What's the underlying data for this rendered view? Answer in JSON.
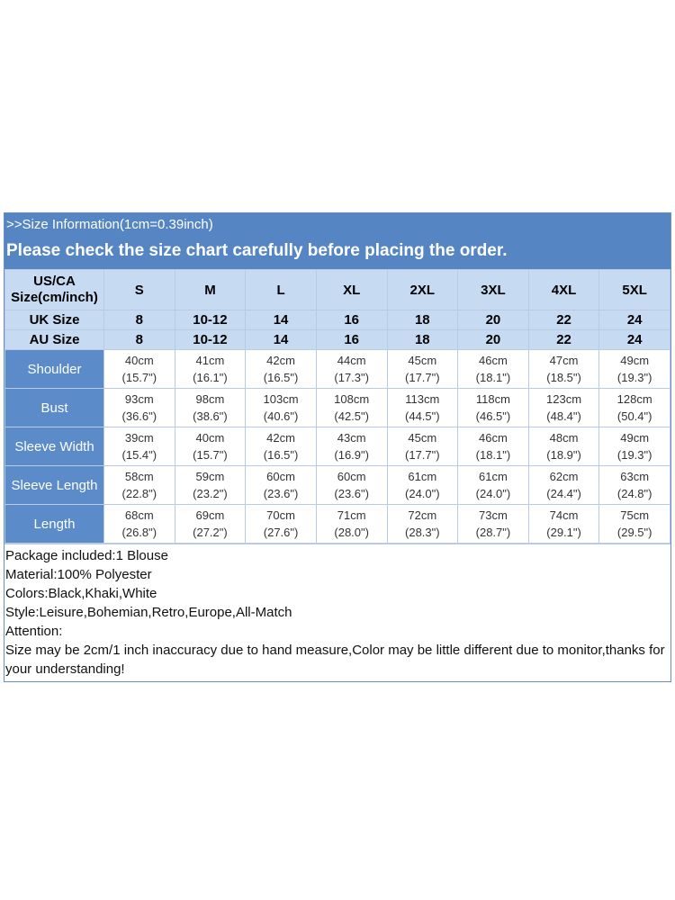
{
  "header": {
    "info": ">>Size Information(1cm=0.39inch)",
    "notice": "Please check the size chart carefully before placing the order."
  },
  "size_rows": [
    {
      "label": "US/CA Size(cm/inch)",
      "values": [
        "S",
        "M",
        "L",
        "XL",
        "2XL",
        "3XL",
        "4XL",
        "5XL"
      ]
    },
    {
      "label": "UK Size",
      "values": [
        "8",
        "10-12",
        "14",
        "16",
        "18",
        "20",
        "22",
        "24"
      ]
    },
    {
      "label": "AU Size",
      "values": [
        "8",
        "10-12",
        "14",
        "16",
        "18",
        "20",
        "22",
        "24"
      ]
    }
  ],
  "measurements": [
    {
      "label": "Shoulder",
      "cm": [
        "40cm",
        "41cm",
        "42cm",
        "44cm",
        "45cm",
        "46cm",
        "47cm",
        "49cm"
      ],
      "inch": [
        "(15.7\")",
        "(16.1\")",
        "(16.5\")",
        "(17.3\")",
        "(17.7\")",
        "(18.1\")",
        "(18.5\")",
        "(19.3\")"
      ]
    },
    {
      "label": "Bust",
      "cm": [
        "93cm",
        "98cm",
        "103cm",
        "108cm",
        "113cm",
        "118cm",
        "123cm",
        "128cm"
      ],
      "inch": [
        "(36.6\")",
        "(38.6\")",
        "(40.6\")",
        "(42.5\")",
        "(44.5\")",
        "(46.5\")",
        "(48.4\")",
        "(50.4\")"
      ]
    },
    {
      "label": "Sleeve Width",
      "cm": [
        "39cm",
        "40cm",
        "42cm",
        "43cm",
        "45cm",
        "46cm",
        "48cm",
        "49cm"
      ],
      "inch": [
        "(15.4\")",
        "(15.7\")",
        "(16.5\")",
        "(16.9\")",
        "(17.7\")",
        "(18.1\")",
        "(18.9\")",
        "(19.3\")"
      ]
    },
    {
      "label": "Sleeve Length",
      "cm": [
        "58cm",
        "59cm",
        "60cm",
        "60cm",
        "61cm",
        "61cm",
        "62cm",
        "63cm"
      ],
      "inch": [
        "(22.8\")",
        "(23.2\")",
        "(23.6\")",
        "(23.6\")",
        "(24.0\")",
        "(24.0\")",
        "(24.4\")",
        "(24.8\")"
      ]
    },
    {
      "label": "Length",
      "cm": [
        "68cm",
        "69cm",
        "70cm",
        "71cm",
        "72cm",
        "73cm",
        "74cm",
        "75cm"
      ],
      "inch": [
        "(26.8\")",
        "(27.2\")",
        "(27.6\")",
        "(28.0\")",
        "(28.3\")",
        "(28.7\")",
        "(29.1\")",
        "(29.5\")"
      ]
    }
  ],
  "notes": [
    "Package included:1 Blouse",
    "Material:100% Polyester",
    "Colors:Black,Khaki,White",
    "Style:Leisure,Bohemian,Retro,Europe,All-Match",
    "Attention:",
    "Size may be 2cm/1 inch inaccuracy due to hand measure,Color may be little different due to monitor,thanks for your understanding!"
  ],
  "colors": {
    "header_bg": "#5585c2",
    "size_row_bg": "#c6daf2",
    "label_bg": "#5b8bc8"
  }
}
